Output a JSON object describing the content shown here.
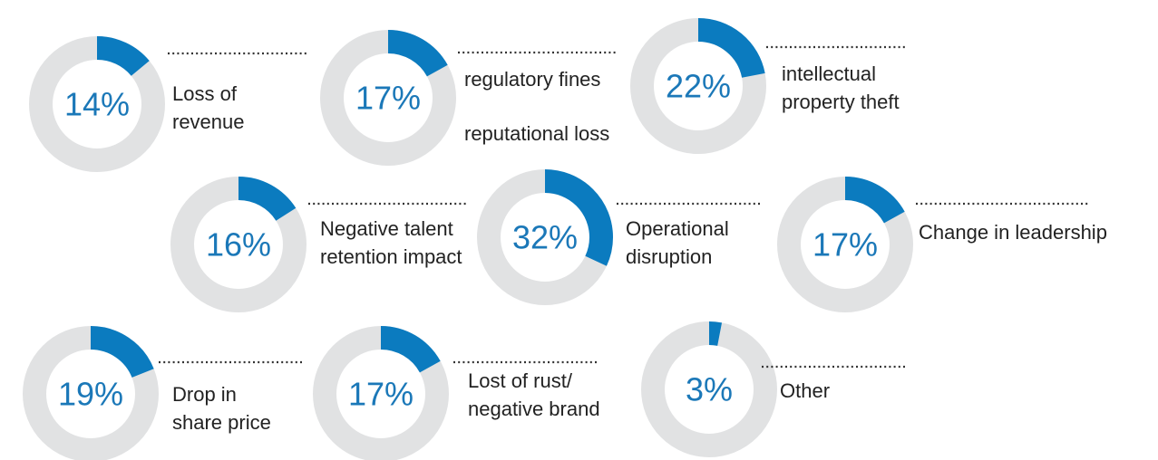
{
  "chart_data": [
    {
      "type": "donut",
      "categories": [
        "Loss of\nrevenue"
      ],
      "values": [
        14
      ],
      "value_labels": [
        "14%"
      ],
      "color": "#0b7bbf",
      "track_color": "#e1e2e3"
    },
    {
      "type": "donut",
      "categories": [
        "regulatory fines"
      ],
      "values": [
        17
      ],
      "value_labels": [
        "17%"
      ],
      "annotation": "reputational loss",
      "color": "#0b7bbf",
      "track_color": "#e1e2e3"
    },
    {
      "type": "donut",
      "categories": [
        "intellectual\nproperty theft"
      ],
      "values": [
        22
      ],
      "value_labels": [
        "22%"
      ],
      "color": "#0b7bbf",
      "track_color": "#e1e2e3"
    },
    {
      "type": "donut",
      "categories": [
        "Negative talent\nretention impact"
      ],
      "values": [
        16
      ],
      "value_labels": [
        "16%"
      ],
      "color": "#0b7bbf",
      "track_color": "#e1e2e3"
    },
    {
      "type": "donut",
      "categories": [
        "Operational\ndisruption"
      ],
      "values": [
        32
      ],
      "value_labels": [
        "32%"
      ],
      "color": "#0b7bbf",
      "track_color": "#e1e2e3"
    },
    {
      "type": "donut",
      "categories": [
        "Change in leadership"
      ],
      "values": [
        17
      ],
      "value_labels": [
        "17%"
      ],
      "color": "#0b7bbf",
      "track_color": "#e1e2e3"
    },
    {
      "type": "donut",
      "categories": [
        "Drop in\nshare price"
      ],
      "values": [
        19
      ],
      "value_labels": [
        "19%"
      ],
      "color": "#0b7bbf",
      "track_color": "#e1e2e3"
    },
    {
      "type": "donut",
      "categories": [
        "Lost of rust/\nnegative brand"
      ],
      "values": [
        17
      ],
      "value_labels": [
        "17%"
      ],
      "color": "#0b7bbf",
      "track_color": "#e1e2e3"
    },
    {
      "type": "donut",
      "categories": [
        "Other"
      ],
      "values": [
        3
      ],
      "value_labels": [
        "3%"
      ],
      "color": "#0b7bbf",
      "track_color": "#e1e2e3"
    }
  ]
}
